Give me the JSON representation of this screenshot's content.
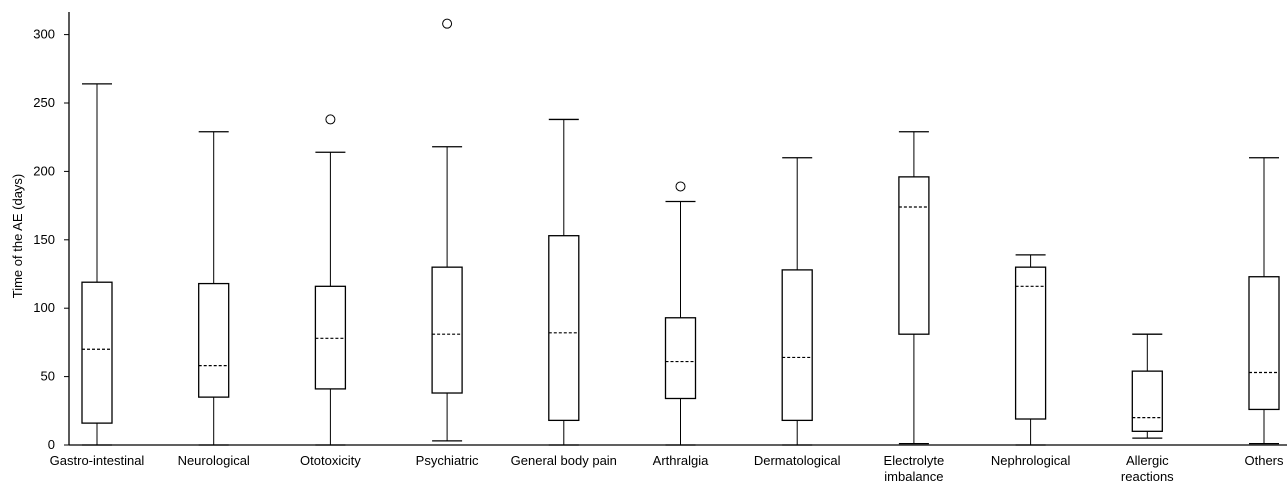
{
  "chart_data": {
    "type": "boxplot",
    "title": "",
    "xlabel": "",
    "ylabel": "Time of the AE (days)",
    "ylim": [
      0,
      320
    ],
    "yticks": [
      0,
      50,
      100,
      150,
      200,
      250,
      300
    ],
    "grid": false,
    "legend": "none",
    "categories": [
      [
        "Gastro-intestinal"
      ],
      [
        "Neurological"
      ],
      [
        "Ototoxicity"
      ],
      [
        "Psychiatric"
      ],
      [
        "General body pain"
      ],
      [
        "Arthralgia"
      ],
      [
        "Dermatological"
      ],
      [
        "Electrolyte",
        "imbalance"
      ],
      [
        "Nephrological"
      ],
      [
        "Allergic",
        "reactions"
      ],
      [
        "Others"
      ]
    ],
    "boxes": [
      {
        "min": 0,
        "q1": 16,
        "median": 70,
        "q3": 119,
        "max": 264,
        "outliers": []
      },
      {
        "min": 0,
        "q1": 35,
        "median": 58,
        "q3": 118,
        "max": 229,
        "outliers": []
      },
      {
        "min": 0,
        "q1": 41,
        "median": 78,
        "q3": 116,
        "max": 214,
        "outliers": [
          238
        ]
      },
      {
        "min": 3,
        "q1": 38,
        "median": 81,
        "q3": 130,
        "max": 218,
        "outliers": [
          308
        ]
      },
      {
        "min": 0,
        "q1": 18,
        "median": 82,
        "q3": 153,
        "max": 238,
        "outliers": []
      },
      {
        "min": 0,
        "q1": 34,
        "median": 61,
        "q3": 93,
        "max": 178,
        "outliers": [
          189
        ]
      },
      {
        "min": 0,
        "q1": 18,
        "median": 64,
        "q3": 128,
        "max": 210,
        "outliers": []
      },
      {
        "min": 1,
        "q1": 81,
        "median": 174,
        "q3": 196,
        "max": 229,
        "outliers": []
      },
      {
        "min": 0,
        "q1": 19,
        "median": 116,
        "q3": 130,
        "max": 139,
        "outliers": []
      },
      {
        "min": 5,
        "q1": 10,
        "median": 20,
        "q3": 54,
        "max": 81,
        "outliers": []
      },
      {
        "min": 1,
        "q1": 26,
        "median": 53,
        "q3": 123,
        "max": 210,
        "outliers": []
      }
    ]
  }
}
